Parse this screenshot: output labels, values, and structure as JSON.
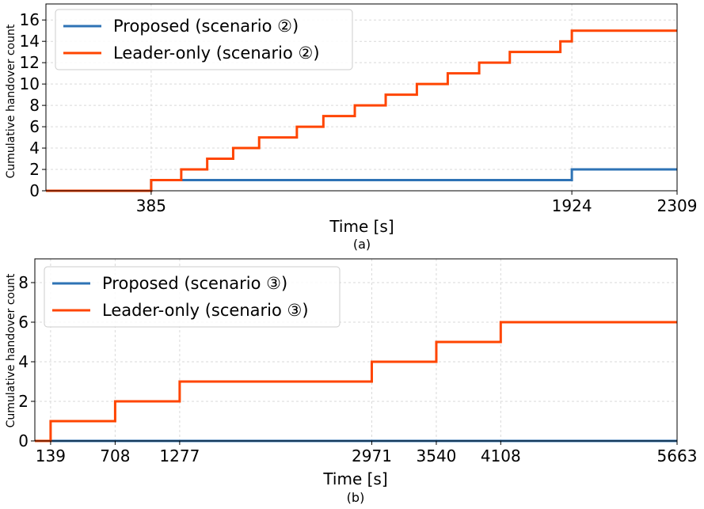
{
  "colors": {
    "proposed": "#2e73b5",
    "leader": "#ff4500"
  },
  "chart_data": [
    {
      "type": "line",
      "subplot_label": "(a)",
      "xlabel": "Time [s]",
      "ylabel": "Cumulative handover count",
      "xlim": [
        0,
        2309
      ],
      "ylim": [
        0,
        17.5
      ],
      "xticks": [
        385,
        1924,
        2309
      ],
      "yticks": [
        0,
        2,
        4,
        6,
        8,
        10,
        12,
        14,
        16
      ],
      "grid": true,
      "legend_position": "top-left",
      "series": [
        {
          "name": "Proposed (scenario ②)",
          "color": "#2e73b5",
          "x": [
            0,
            385,
            1924,
            2309
          ],
          "y": [
            0,
            1,
            2,
            2
          ]
        },
        {
          "name": "Leader-only (scenario ②)",
          "color": "#ff4500",
          "x": [
            0,
            385,
            495,
            590,
            685,
            780,
            918,
            1015,
            1130,
            1243,
            1357,
            1470,
            1585,
            1697,
            1882,
            1924,
            2309
          ],
          "y": [
            0,
            1,
            2,
            3,
            4,
            5,
            6,
            7,
            8,
            9,
            10,
            11,
            12,
            13,
            14,
            15,
            15
          ]
        }
      ]
    },
    {
      "type": "line",
      "subplot_label": "(b)",
      "xlabel": "Time [s]",
      "ylabel": "Cumulative handover count",
      "xlim": [
        0,
        5663
      ],
      "ylim": [
        0,
        9.2
      ],
      "xticks": [
        139,
        708,
        1277,
        2971,
        3540,
        4108,
        5663
      ],
      "yticks": [
        0,
        2,
        4,
        6,
        8
      ],
      "grid": true,
      "legend_position": "top-left",
      "series": [
        {
          "name": "Proposed (scenario ③)",
          "color": "#2e73b5",
          "x": [
            0,
            5663
          ],
          "y": [
            0,
            0
          ]
        },
        {
          "name": "Leader-only (scenario ③)",
          "color": "#ff4500",
          "x": [
            0,
            139,
            708,
            1277,
            2971,
            3540,
            4108,
            5663
          ],
          "y": [
            0,
            1,
            2,
            3,
            4,
            5,
            6,
            6
          ]
        }
      ]
    }
  ]
}
